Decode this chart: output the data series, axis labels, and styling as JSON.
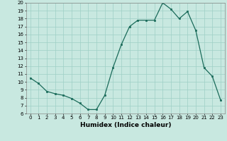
{
  "x": [
    0,
    1,
    2,
    3,
    4,
    5,
    6,
    7,
    8,
    9,
    10,
    11,
    12,
    13,
    14,
    15,
    16,
    17,
    18,
    19,
    20,
    21,
    22,
    23
  ],
  "y": [
    10.5,
    9.8,
    8.8,
    8.5,
    8.3,
    7.9,
    7.3,
    6.5,
    6.5,
    8.3,
    11.8,
    14.7,
    17.0,
    17.8,
    17.8,
    17.8,
    20.0,
    19.2,
    18.0,
    18.9,
    16.5,
    11.8,
    10.7,
    7.7
  ],
  "xlabel": "Humidex (Indice chaleur)",
  "ylim": [
    6,
    20
  ],
  "xlim": [
    -0.5,
    23.5
  ],
  "yticks": [
    6,
    7,
    8,
    9,
    10,
    11,
    12,
    13,
    14,
    15,
    16,
    17,
    18,
    19,
    20
  ],
  "xticks": [
    0,
    1,
    2,
    3,
    4,
    5,
    6,
    7,
    8,
    9,
    10,
    11,
    12,
    13,
    14,
    15,
    16,
    17,
    18,
    19,
    20,
    21,
    22,
    23
  ],
  "line_color": "#1a6b5a",
  "marker_color": "#1a6b5a",
  "bg_color": "#c8e8e0",
  "grid_color": "#9ecfc5",
  "xlabel_fontsize": 6.5,
  "tick_fontsize": 5.0
}
